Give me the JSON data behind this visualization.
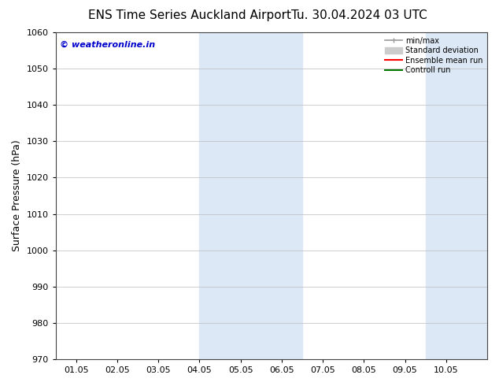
{
  "title_left": "ENS Time Series Auckland Airport",
  "title_right": "Tu. 30.04.2024 03 UTC",
  "ylabel": "Surface Pressure (hPa)",
  "ylim": [
    970,
    1060
  ],
  "yticks": [
    970,
    980,
    990,
    1000,
    1010,
    1020,
    1030,
    1040,
    1050,
    1060
  ],
  "x_labels": [
    "01.05",
    "02.05",
    "03.05",
    "04.05",
    "05.05",
    "06.05",
    "07.05",
    "08.05",
    "09.05",
    "10.05"
  ],
  "x_positions": [
    0,
    1,
    2,
    3,
    4,
    5,
    6,
    7,
    8,
    9
  ],
  "xlim": [
    -0.5,
    10.0
  ],
  "shaded_bands": [
    {
      "x_start": 3.0,
      "x_end": 5.5
    },
    {
      "x_start": 8.5,
      "x_end": 10.0
    }
  ],
  "shaded_color": "#dce8f5",
  "watermark_text": "© weatheronline.in",
  "watermark_color": "#0000cc",
  "legend_entries": [
    {
      "label": "min/max",
      "color": "#999999",
      "lw": 1.2
    },
    {
      "label": "Standard deviation",
      "color": "#cccccc",
      "lw": 6
    },
    {
      "label": "Ensemble mean run",
      "color": "#ff0000",
      "lw": 1.5
    },
    {
      "label": "Controll run",
      "color": "#007700",
      "lw": 1.5
    }
  ],
  "bg_color": "#ffffff",
  "grid_color": "#bbbbbb",
  "title_fontsize": 11,
  "tick_fontsize": 8,
  "ylabel_fontsize": 9,
  "watermark_fontsize": 8
}
